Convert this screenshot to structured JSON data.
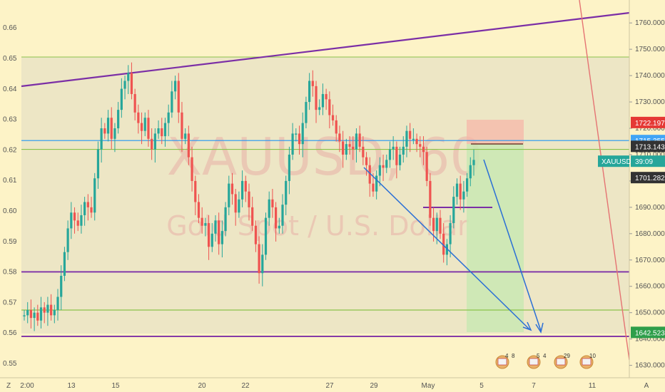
{
  "watermark": {
    "symbol": "XAUUSD, 60",
    "description": "Gold Spot / U.S. Dollar"
  },
  "corner": {
    "left": "Z",
    "right": "A"
  },
  "colors": {
    "background": "#fdf3c7",
    "range_fill": "#eae3c4",
    "candle_up": "#26a69a",
    "candle_down": "#ef5350",
    "trend_purple": "#7b2ea6",
    "blue_line": "#2196f3",
    "green_line": "#8bc34a",
    "arrow_blue": "#2a6fd6",
    "red_line": "#e57373",
    "target_green": "#c9e7b3",
    "stop_red": "#f5b7a8"
  },
  "chart_data": {
    "type": "candlestick",
    "title": "",
    "x_ticks": [
      "2:00",
      "13",
      "15",
      "20",
      "22",
      "27",
      "29",
      "May",
      "5",
      "7",
      "11"
    ],
    "left_axis": {
      "ticks": [
        "0.55",
        "0.56",
        "0.57",
        "0.58",
        "0.59",
        "0.60",
        "0.61",
        "0.62",
        "0.63",
        "0.64",
        "0.65",
        "0.66"
      ]
    },
    "right_axis": {
      "ticks": [
        "1630.000",
        "1640.000",
        "1650.000",
        "1660.000",
        "1670.000",
        "1680.000",
        "1690.000",
        "1700.000",
        "1710.000",
        "1720.000",
        "1730.000",
        "1740.000",
        "1750.000",
        "1760.000"
      ],
      "ylim": [
        1628,
        1766
      ]
    },
    "price_labels": [
      {
        "text": "1722.197",
        "value": 1722.197,
        "bg": "#e53935",
        "fg": "#ffffff"
      },
      {
        "text": "1715.355",
        "value": 1715.355,
        "bg": "#42a5f5",
        "fg": "#ffffff"
      },
      {
        "text": "1713.143",
        "value": 1713.143,
        "bg": "#333333",
        "fg": "#ffffff"
      },
      {
        "text": "39:09",
        "value": 1707.5,
        "bg": "#26a69a",
        "fg": "#ffffff",
        "prefix": "XAUUSD"
      },
      {
        "text": "1701.282",
        "value": 1701.282,
        "bg": "#333333",
        "fg": "#ffffff"
      },
      {
        "text": "1642.523",
        "value": 1642.523,
        "bg": "#2e9e4a",
        "fg": "#ffffff"
      }
    ],
    "horizontal_levels": [
      {
        "name": "resistance",
        "value": 1715.355,
        "color": "#2196f3"
      },
      {
        "name": "support-top",
        "value": 1712.0,
        "color": "#8bc34a"
      },
      {
        "name": "support-mid",
        "value": 1651.0,
        "color": "#8bc34a"
      },
      {
        "name": "support-purple",
        "value": 1665.5,
        "color": "#7b2ea6"
      },
      {
        "name": "target-purple",
        "value": 1641.0,
        "color": "#7b2ea6"
      }
    ],
    "candles_close": [
      1649,
      1651,
      1648,
      1650,
      1647,
      1652,
      1650,
      1653,
      1649,
      1651,
      1656,
      1664,
      1673,
      1682,
      1688,
      1685,
      1683,
      1687,
      1692,
      1690,
      1688,
      1701,
      1712,
      1720,
      1718,
      1724,
      1716,
      1720,
      1727,
      1735,
      1738,
      1741,
      1733,
      1726,
      1722,
      1719,
      1724,
      1716,
      1712,
      1718,
      1720,
      1717,
      1722,
      1726,
      1734,
      1738,
      1726,
      1716,
      1718,
      1709,
      1700,
      1692,
      1686,
      1683,
      1684,
      1675,
      1680,
      1685,
      1676,
      1681,
      1690,
      1699,
      1695,
      1688,
      1693,
      1700,
      1696,
      1690,
      1683,
      1676,
      1665,
      1672,
      1686,
      1693,
      1690,
      1682,
      1683,
      1691,
      1700,
      1710,
      1718,
      1718,
      1714,
      1722,
      1730,
      1738,
      1736,
      1727,
      1728,
      1733,
      1731,
      1725,
      1723,
      1718,
      1715,
      1710,
      1714,
      1713,
      1712,
      1718,
      1713,
      1709,
      1706,
      1699,
      1696,
      1702,
      1706,
      1705,
      1708,
      1712,
      1713,
      1706,
      1710,
      1713,
      1719,
      1716,
      1716,
      1714,
      1713,
      1711,
      1700,
      1686,
      1681,
      1686,
      1680,
      1672,
      1676,
      1684,
      1694,
      1699,
      1693,
      1696,
      1701,
      1706,
      1708
    ]
  },
  "events": [
    {
      "id": "e1",
      "label": "4",
      "label2": "8"
    },
    {
      "id": "e2",
      "label": "5",
      "label2": "4"
    },
    {
      "id": "e3",
      "label": "29",
      "label2": ""
    },
    {
      "id": "e4",
      "label": "10",
      "label2": ""
    }
  ]
}
